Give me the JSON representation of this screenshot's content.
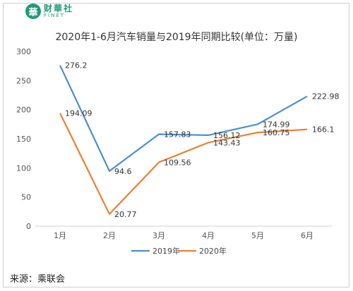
{
  "logo": {
    "glyph": "華",
    "cn": "财華社",
    "en": "FINET"
  },
  "source": "来源：乘联会",
  "colors": {
    "series2019": "#4a8fcf",
    "series2020": "#ec7f35"
  },
  "chart_data": {
    "type": "line",
    "title": "2020年1-6月汽车销量与2019年同期比较(单位：万量)",
    "categories": [
      "1月",
      "2月",
      "3月",
      "4月",
      "5月",
      "6月"
    ],
    "ylim": [
      0,
      300
    ],
    "yticks": [
      0,
      50,
      100,
      150,
      200,
      250,
      300
    ],
    "grid": false,
    "legend": "bottom",
    "series": [
      {
        "name": "2019年",
        "values": [
          276.2,
          94.6,
          157.83,
          156.12,
          174.99,
          222.98
        ],
        "labels": [
          "276.2",
          "94.6",
          "157.83",
          "156.12",
          "174.99",
          "222.98"
        ]
      },
      {
        "name": "2020年",
        "values": [
          194.09,
          20.77,
          109.56,
          143.43,
          160.75,
          166.1
        ],
        "labels": [
          "194.09",
          "20.77",
          "109.56",
          "143.43",
          "160.75",
          "166.1"
        ]
      }
    ]
  }
}
